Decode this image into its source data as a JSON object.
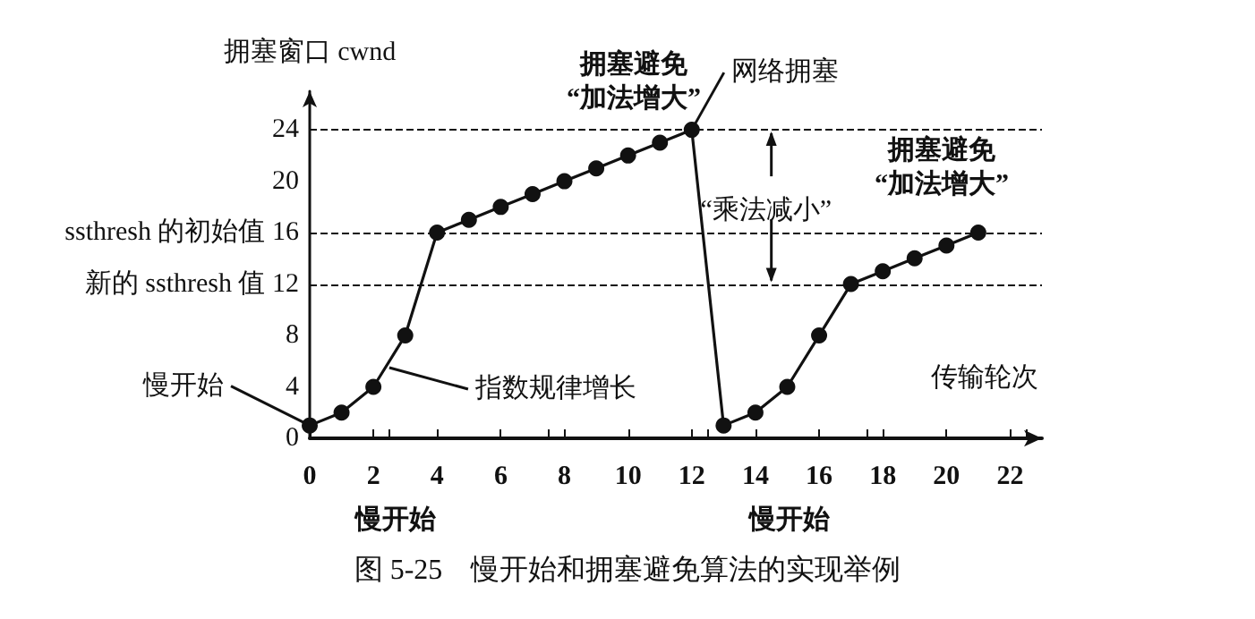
{
  "chart_data": {
    "type": "line",
    "title": "图 5-25　慢开始和拥塞避免算法的实现举例",
    "xlabel": "传输轮次",
    "ylabel": "拥塞窗口 cwnd",
    "x": [
      0,
      1,
      2,
      3,
      4,
      5,
      6,
      7,
      8,
      9,
      10,
      11,
      12,
      13,
      14,
      15,
      16,
      17,
      18,
      19,
      20,
      21
    ],
    "series": [
      {
        "color": "#111111",
        "values": [
          1,
          2,
          4,
          8,
          16,
          17,
          18,
          19,
          20,
          21,
          22,
          23,
          24,
          1,
          2,
          4,
          8,
          12,
          13,
          14,
          15,
          16
        ]
      }
    ],
    "xlim": [
      0,
      23
    ],
    "xticks": [
      0,
      2,
      4,
      6,
      8,
      10,
      12,
      14,
      16,
      18,
      20,
      22
    ],
    "ylim": [
      0,
      27
    ],
    "yticks": [
      0,
      4,
      8,
      {
        "value": 12,
        "label": "新的 ssthresh 值 12"
      },
      {
        "value": 16,
        "label": "ssthresh 的初始值 16"
      },
      20,
      24
    ],
    "ref_lines": [
      {
        "axis": "y",
        "value": 24,
        "line_style": "dashed",
        "color": "#111111"
      },
      {
        "axis": "y",
        "value": 16,
        "line_style": "dashed",
        "color": "#111111"
      },
      {
        "axis": "y",
        "value": 12,
        "line_style": "dashed",
        "color": "#111111"
      }
    ],
    "annotations": [
      {
        "text": "慢开始",
        "x": 0,
        "y": 1
      },
      {
        "text": "指数规律增长",
        "x": 2.5,
        "y": 5.5
      },
      {
        "text": "网络拥塞",
        "x": 12,
        "y": 24
      },
      "拥塞避免\n“加法增大”",
      {
        "text": "“乘法减小”",
        "x": 14.5,
        "y": 12
      },
      "拥塞避免\n“加法增大”",
      "慢开始",
      "慢开始"
    ],
    "marker": "circle",
    "line_style": "solid"
  }
}
